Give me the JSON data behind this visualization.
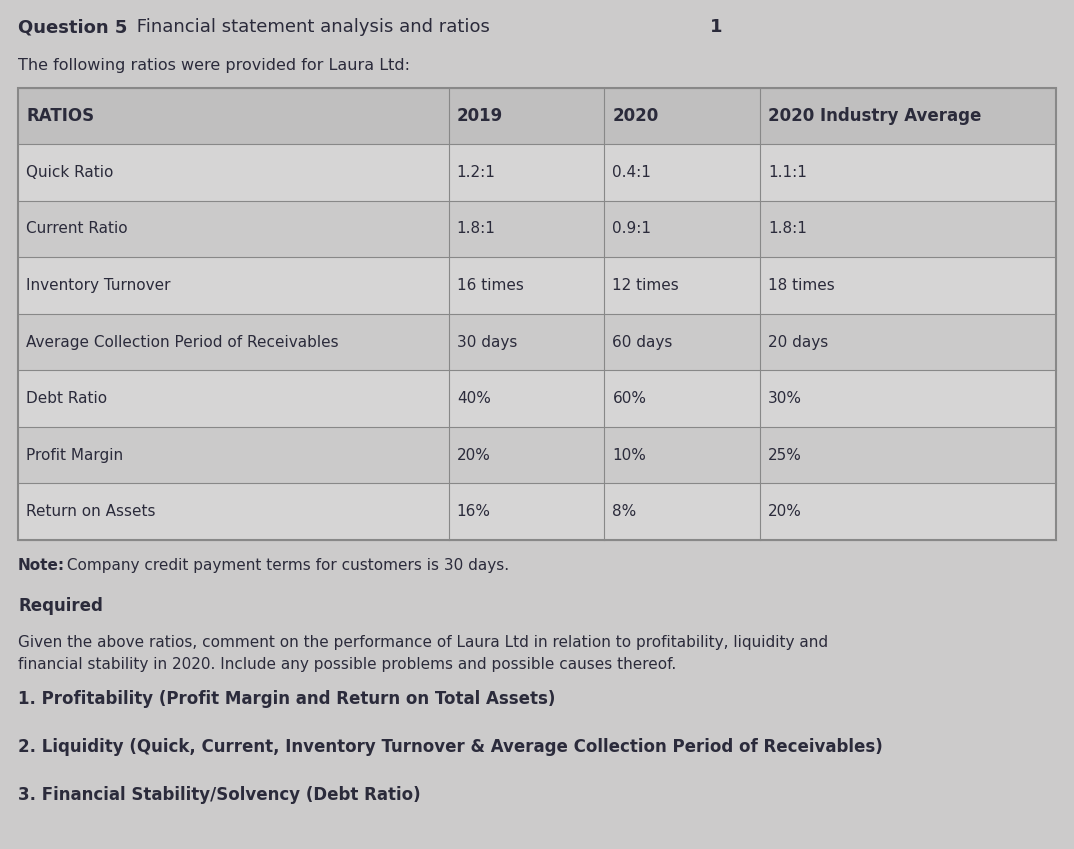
{
  "title_bold": "Question 5",
  "title_rest": "     Financial statement analysis and ratios ",
  "title_bold2": "1",
  "subtitle": "The following ratios were provided for Laura Ltd:",
  "table_headers": [
    "RATIOS",
    "2019",
    "2020",
    "2020 Industry Average"
  ],
  "table_rows": [
    [
      "Quick Ratio",
      "1.2:1",
      "0.4:1",
      "1.1:1"
    ],
    [
      "Current Ratio",
      "1.8:1",
      "0.9:1",
      "1.8:1"
    ],
    [
      "Inventory Turnover",
      "16 times",
      "12 times",
      "18 times"
    ],
    [
      "Average Collection Period of Receivables",
      "30 days",
      "60 days",
      "20 days"
    ],
    [
      "Debt Ratio",
      "40%",
      "60%",
      "30%"
    ],
    [
      "Profit Margin",
      "20%",
      "10%",
      "25%"
    ],
    [
      "Return on Assets",
      "16%",
      "8%",
      "20%"
    ]
  ],
  "note_bold": "Note:",
  "note_rest": " Company credit payment terms for customers is 30 days.",
  "required_label": "Required",
  "required_line1": "Given the above ratios, comment on the performance of Laura Ltd in relation to profitability, liquidity and",
  "required_line2": "financial stability in 2020. Include any possible problems and possible causes thereof.",
  "points": [
    "1. Profitability (Profit Margin and Return on Total Assets)",
    "2. Liquidity (Quick, Current, Inventory Turnover & Average Collection Period of Receivables)",
    "3. Financial Stability/Solvency (Debt Ratio)"
  ],
  "bg_color": "#cccbcb",
  "cell_color_even": "#d6d5d5",
  "cell_color_odd": "#cbcaca",
  "header_color": "#c0bfbf",
  "border_color": "#888888",
  "text_color": "#2b2b3b",
  "title_fontsize": 13,
  "subtitle_fontsize": 11.5,
  "header_fontsize": 12,
  "body_fontsize": 11,
  "note_fontsize": 11,
  "required_label_fontsize": 12,
  "required_text_fontsize": 11,
  "points_fontsize": 12
}
